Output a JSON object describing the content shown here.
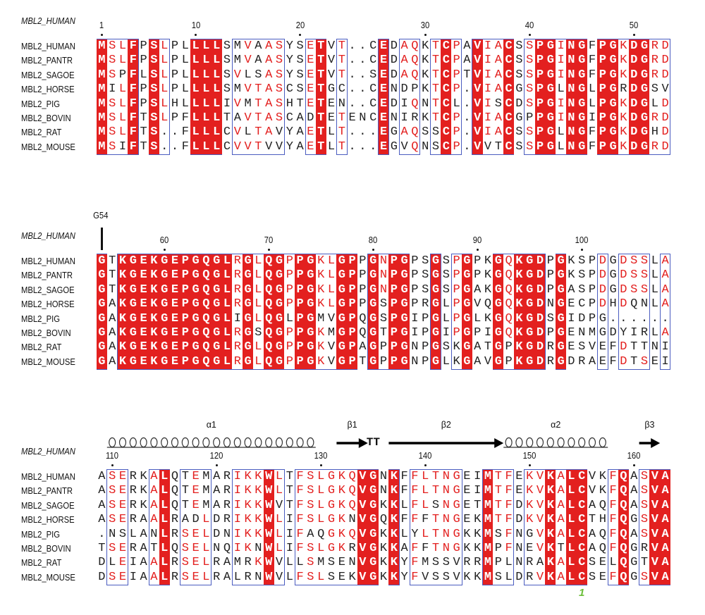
{
  "colors": {
    "conserved_fill": "#e3201f",
    "similar_text": "#e3201f",
    "box_border": "#4a5cc0",
    "annotation": "#6cbf3a"
  },
  "blocks": [
    {
      "ref_label": "MBL2_HUMAN",
      "ruler": [
        {
          "label": "1",
          "col": 1
        },
        {
          "label": "10",
          "col": 10
        },
        {
          "label": "20",
          "col": 20
        },
        {
          "label": "30",
          "col": 32
        },
        {
          "label": "40",
          "col": 42
        },
        {
          "label": "50",
          "col": 52
        }
      ],
      "conservation": "RBBR.RB..RRR.BBBBB..BR.B...R.BB.BRB.RBBR.BRRBRR.RRBRRBB",
      "rows": [
        {
          "name": "MBL2_HUMAN",
          "seq": "MSLFPSLPLLLLSMVAASYSETVT..CEDAQKTCPAVIACSSPGINGFPGKDGRD"
        },
        {
          "name": "MBL2_PANTR",
          "seq": "MSLFPSLPLLLLSMVAASYSETVT..CEDAQKTCPAVIACSSPGINGFPGKDGRD"
        },
        {
          "name": "MBL2_SAGOE",
          "seq": "MSPFLSLPLLLLSVLSASYSETVT..SEDAQKTCPTVIACSSPGINGFPGKDGRD"
        },
        {
          "name": "MBL2_HORSE",
          "seq": "MILFPSLPLLLLSMVTASCSETGC..CENDPKTCP.VIACGSPGLNGLPGRDGSV"
        },
        {
          "name": "MBL2_PIG",
          "seq": "MSLFPSLHLLLLIVMTASHTETEN..CEDIQNTCL.VISCDSPGINGLPGKDGLD"
        },
        {
          "name": "MBL2_BOVIN",
          "seq": "MSLFTSLPFLLLTAVTASCADTETENCENIRKTCP.VIACGPPGINGIPGKDGRD"
        },
        {
          "name": "MBL2_RAT",
          "seq": "MSLFTS..FLLLCVLTAVYAETLT...EGAQSSCP.VIACSSPGLNGFPGKDGHD"
        },
        {
          "name": "MBL2_MOUSE",
          "seq": "MSIFTS..FLLLCVVTVVYAETLT...EGVQNSCP.VVTCSSPGLNGFPGKDGRD"
        }
      ]
    },
    {
      "ref_label": "MBL2_HUMAN",
      "marker": {
        "label": "G54",
        "col": 1
      },
      "ruler": [
        {
          "label": "60",
          "col": 7
        },
        {
          "label": "70",
          "col": 17
        },
        {
          "label": "80",
          "col": 27
        },
        {
          "label": "90",
          "col": 37
        },
        {
          "label": "100",
          "col": 47
        }
      ],
      "conservation": "R.RRRRRRRRRRRBRBRRBRRBBRR.RBRR..R.BR..RBRRR.R...B.BBB.B",
      "rows": [
        {
          "name": "MBL2_HUMAN",
          "seq": "GTKGEKGEPGQGLRGLQGPPGKLGPPGNPGPSGSPGPKGQKGDPGKSPDGDSSLA"
        },
        {
          "name": "MBL2_PANTR",
          "seq": "GTKGEKGEPGQGLRGLQGPPGKLGPPGNPGPSGSPGPKGQKGDPGKSPDGDSSLA"
        },
        {
          "name": "MBL2_SAGOE",
          "seq": "GTKGEKGEPGQGLRGLQGPPGKLGPPGNPGPSGSPGAKGQKGDPGASPDGDSSLA"
        },
        {
          "name": "MBL2_HORSE",
          "seq": "GAKGEKGEPGQGLRGLQGPPGKLGPPGSPGPRGLPGVQGQKGDNGECPDHDQNLA"
        },
        {
          "name": "MBL2_PIG",
          "seq": "GAKGEKGEPGQGLIGLQGLPGMVGPQGSPGIPGLPGLKGQKGDSGIDPG......"
        },
        {
          "name": "MBL2_BOVIN",
          "seq": "GAKGEKGEPGQGLRGSQGPPGKMGPQGTPGIPGIPGPIGQKGDPGENMGDYIRLA"
        },
        {
          "name": "MBL2_RAT",
          "seq": "GAKGEKGEPGQGLRGLQGPPGKVGPAGPPGNPGSKGATGPKGDRGESVEFDTTNI"
        },
        {
          "name": "MBL2_MOUSE",
          "seq": "GAKGEKGEPGQGLRGLQGPPGKVGPTGPPGNPGLKGAVGPKGDRGDRAEFDTSEI"
        }
      ]
    },
    {
      "ref_label": "MBL2_HUMAN",
      "ruler": [
        {
          "label": "110",
          "col": 2
        },
        {
          "label": "120",
          "col": 12
        },
        {
          "label": "130",
          "col": 22
        },
        {
          "label": "140",
          "col": 32
        },
        {
          "label": "150",
          "col": 42
        },
        {
          "label": "160",
          "col": 52
        }
      ],
      "secondary_structure": [
        {
          "type": "helix",
          "label": "α1",
          "start": 2,
          "end": 21
        },
        {
          "type": "strand",
          "label": "β1",
          "start": 24,
          "end": 26
        },
        {
          "type": "turn",
          "label": "TT",
          "start": 27,
          "end": 28
        },
        {
          "type": "strand",
          "label": "β2",
          "start": 29,
          "end": 39
        },
        {
          "type": "helix",
          "label": "α2",
          "start": 40,
          "end": 49
        },
        {
          "type": "strand",
          "label": "β3",
          "start": 53,
          "end": 54
        }
      ],
      "annotations": [
        {
          "label": "1",
          "col": 47
        }
      ],
      "conservation": ".BB..BR.BBB..BBBRB.BBBBBBRR.R.BBBBB..RBB.BBRBRR..BR.BRR",
      "rows": [
        {
          "name": "MBL2_HUMAN",
          "seq": "ASERKALQTEMARIKKWLTFSLGKQVGNKFFLTNGEIMTFEKVKALCVKFQASVA"
        },
        {
          "name": "MBL2_PANTR",
          "seq": "ASERKALQTEMARIKKWLTFSLGKQVGNKFFLTNGEIMTFEKVKALCVKFQASVA"
        },
        {
          "name": "MBL2_SAGOE",
          "seq": "ASERKALQTEMARIKKWVTFSLGKQVGKKLFLSNGETMTFDKVKALCAQFQASVA"
        },
        {
          "name": "MBL2_HORSE",
          "seq": "ASERAALRADLDRIKKWLIFSLGKNVGQKFFFTNGEKMTFDKVKALCTHFQGSVA"
        },
        {
          "name": "MBL2_PIG",
          "seq": ".NSLANLRSELDNIKKWLIFAQGKQVGKKLYLTNGKKMSFNGVKALCAQFQASVA"
        },
        {
          "name": "MBL2_BOVIN",
          "seq": "TSERATLQSELNQIKNWLIFSLGKRVGKKAFFTNGKKMPFNEVKTLCAQFQGRVA"
        },
        {
          "name": "MBL2_RAT",
          "seq": "DLEIAALRSELRAMRKWVLLSMSENVGKKYFMSSVRRMPLNRAKALCSELQGTVA"
        },
        {
          "name": "MBL2_MOUSE",
          "seq": "DSEIAALRSELRALRNWVLFSLSEKVGKKYFVSSVKKMSLDRVKALCSEFQGSVA"
        }
      ]
    }
  ]
}
